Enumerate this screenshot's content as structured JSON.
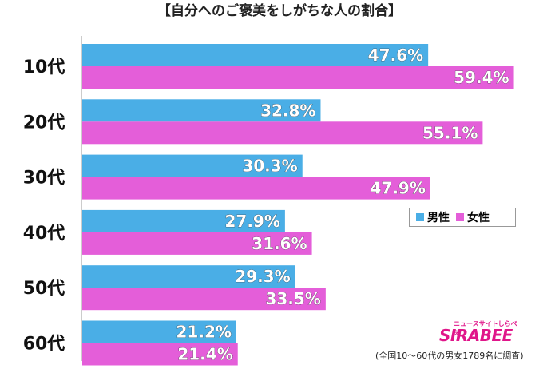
{
  "title": "【自分へのご褒美をしがちな人の割合】",
  "legend": {
    "male_label": "男性",
    "female_label": "女性"
  },
  "colors": {
    "male": "#4aaee6",
    "female": "#e45ed9",
    "axis": "#999999"
  },
  "logo": {
    "text": "SIRABEE",
    "subtext": "ニュースサイトしらべぇ"
  },
  "note": "(全国10〜60代の男女1789名に調査)",
  "chart_data": {
    "type": "bar",
    "orientation": "horizontal",
    "categories": [
      "10代",
      "20代",
      "30代",
      "40代",
      "50代",
      "60代"
    ],
    "series": [
      {
        "name": "男性",
        "values": [
          47.6,
          32.8,
          30.3,
          27.9,
          29.3,
          21.2
        ]
      },
      {
        "name": "女性",
        "values": [
          59.4,
          55.1,
          47.9,
          31.6,
          33.5,
          21.4
        ]
      }
    ],
    "value_labels": {
      "男性": [
        "47.6%",
        "32.8%",
        "30.3%",
        "27.9%",
        "29.3%",
        "21.2%"
      ],
      "女性": [
        "59.4%",
        "55.1%",
        "47.9%",
        "31.6%",
        "33.5%",
        "21.4%"
      ]
    },
    "xlim": [
      0,
      100
    ],
    "grid": false,
    "legend_position": "right"
  }
}
